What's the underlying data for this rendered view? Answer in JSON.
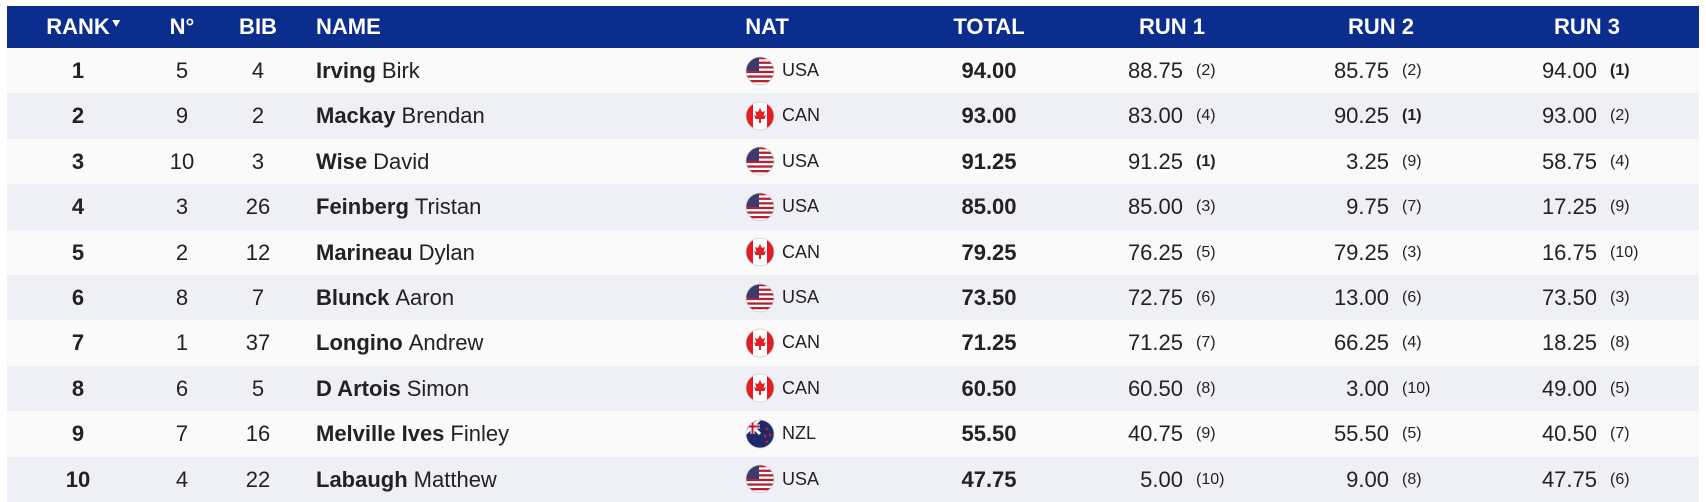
{
  "table": {
    "columns": [
      "RANK",
      "N°",
      "BIB",
      "NAME",
      "NAT",
      "TOTAL",
      "RUN 1",
      "RUN 2",
      "RUN 3"
    ],
    "rows": [
      {
        "rank": "1",
        "n": "5",
        "bib": "4",
        "last": "Irving",
        "first": "Birk",
        "nat": "USA",
        "total": "94.00",
        "run1": "88.75",
        "run1_place": "(2)",
        "run2": "85.75",
        "run2_place": "(2)",
        "run3": "94.00",
        "run3_place": "(1)"
      },
      {
        "rank": "2",
        "n": "9",
        "bib": "2",
        "last": "Mackay",
        "first": "Brendan",
        "nat": "CAN",
        "total": "93.00",
        "run1": "83.00",
        "run1_place": "(4)",
        "run2": "90.25",
        "run2_place": "(1)",
        "run3": "93.00",
        "run3_place": "(2)"
      },
      {
        "rank": "3",
        "n": "10",
        "bib": "3",
        "last": "Wise",
        "first": "David",
        "nat": "USA",
        "total": "91.25",
        "run1": "91.25",
        "run1_place": "(1)",
        "run2": "3.25",
        "run2_place": "(9)",
        "run3": "58.75",
        "run3_place": "(4)"
      },
      {
        "rank": "4",
        "n": "3",
        "bib": "26",
        "last": "Feinberg",
        "first": "Tristan",
        "nat": "USA",
        "total": "85.00",
        "run1": "85.00",
        "run1_place": "(3)",
        "run2": "9.75",
        "run2_place": "(7)",
        "run3": "17.25",
        "run3_place": "(9)"
      },
      {
        "rank": "5",
        "n": "2",
        "bib": "12",
        "last": "Marineau",
        "first": "Dylan",
        "nat": "CAN",
        "total": "79.25",
        "run1": "76.25",
        "run1_place": "(5)",
        "run2": "79.25",
        "run2_place": "(3)",
        "run3": "16.75",
        "run3_place": "(10)"
      },
      {
        "rank": "6",
        "n": "8",
        "bib": "7",
        "last": "Blunck",
        "first": "Aaron",
        "nat": "USA",
        "total": "73.50",
        "run1": "72.75",
        "run1_place": "(6)",
        "run2": "13.00",
        "run2_place": "(6)",
        "run3": "73.50",
        "run3_place": "(3)"
      },
      {
        "rank": "7",
        "n": "1",
        "bib": "37",
        "last": "Longino",
        "first": "Andrew",
        "nat": "CAN",
        "total": "71.25",
        "run1": "71.25",
        "run1_place": "(7)",
        "run2": "66.25",
        "run2_place": "(4)",
        "run3": "18.25",
        "run3_place": "(8)"
      },
      {
        "rank": "8",
        "n": "6",
        "bib": "5",
        "last": "D Artois",
        "first": "Simon",
        "nat": "CAN",
        "total": "60.50",
        "run1": "60.50",
        "run1_place": "(8)",
        "run2": "3.00",
        "run2_place": "(10)",
        "run3": "49.00",
        "run3_place": "(5)"
      },
      {
        "rank": "9",
        "n": "7",
        "bib": "16",
        "last": "Melville Ives",
        "first": "Finley",
        "nat": "NZL",
        "total": "55.50",
        "run1": "40.75",
        "run1_place": "(9)",
        "run2": "55.50",
        "run2_place": "(5)",
        "run3": "40.50",
        "run3_place": "(7)"
      },
      {
        "rank": "10",
        "n": "4",
        "bib": "22",
        "last": "Labaugh",
        "first": "Matthew",
        "nat": "USA",
        "total": "47.75",
        "run1": "5.00",
        "run1_place": "(10)",
        "run2": "9.00",
        "run2_place": "(8)",
        "run3": "47.75",
        "run3_place": "(6)"
      }
    ]
  }
}
